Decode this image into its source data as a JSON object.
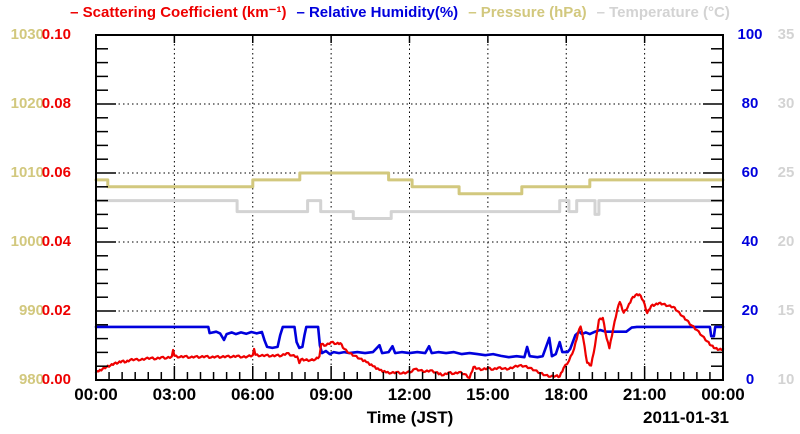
{
  "colors": {
    "scattering": "#ee0000",
    "humidity": "#0000dd",
    "pressure": "#d2c87e",
    "temperature": "#d3d3d3",
    "axis": "#000000"
  },
  "legend": {
    "items": [
      {
        "label": "– Scattering Coefficient (km⁻¹)",
        "color": "#ee0000"
      },
      {
        "label": "– Relative Humidity(%)",
        "color": "#0000dd"
      },
      {
        "label": "– Pressure (hPa)",
        "color": "#d2c87e"
      },
      {
        "label": "– Temperature (°C)",
        "color": "#d3d3d3"
      }
    ]
  },
  "axes": {
    "pressure": {
      "name": "Pressure (hPa)",
      "side": "left-outer",
      "color": "#d2c87e",
      "min": 980,
      "max": 1030,
      "ticks": [
        "1030",
        "1020",
        "1010",
        "1000",
        "990",
        "980"
      ]
    },
    "scattering": {
      "name": "Scattering Coefficient (km⁻¹)",
      "side": "left-inner",
      "color": "#ee0000",
      "min": 0,
      "max": 0.1,
      "ticks": [
        "0.10",
        "0.08",
        "0.06",
        "0.04",
        "0.02",
        "0.00"
      ]
    },
    "humidity": {
      "name": "Relative Humidity (%)",
      "side": "right-inner",
      "color": "#0000dd",
      "min": 0,
      "max": 100,
      "ticks": [
        "100",
        "80",
        "60",
        "40",
        "20",
        "0"
      ]
    },
    "temperature": {
      "name": "Temperature (°C)",
      "side": "right-outer",
      "color": "#d3d3d3",
      "min": 10,
      "max": 35,
      "ticks": [
        "35",
        "30",
        "25",
        "20",
        "15",
        "10"
      ]
    },
    "time": {
      "label": "Time (JST)",
      "date": "2011-01-31",
      "min": 0,
      "max": 24,
      "ticks": [
        "00:00",
        "03:00",
        "06:00",
        "09:00",
        "12:00",
        "15:00",
        "18:00",
        "21:00",
        "00:00"
      ],
      "major_step_hours": 3,
      "minor_step_hours": 0.5
    }
  },
  "chart_data": {
    "type": "line",
    "xlabel": "Time (JST)",
    "date": "2011-01-31",
    "x_range_hours": [
      0,
      24
    ],
    "grid": "dotted-at-major-ticks",
    "legend_position": "top-center",
    "series": [
      {
        "name": "Temperature (°C)",
        "axis": "temperature",
        "color": "#d3d3d3",
        "style": "step",
        "width": 3,
        "noisy": false,
        "points": [
          [
            0,
            23.0
          ],
          [
            5.4,
            22.2
          ],
          [
            8.1,
            23.0
          ],
          [
            8.6,
            22.2
          ],
          [
            9.85,
            21.7
          ],
          [
            11.3,
            22.2
          ],
          [
            17.75,
            23.0
          ],
          [
            18.1,
            22.2
          ],
          [
            18.4,
            23.0
          ],
          [
            19.1,
            22.0
          ],
          [
            19.25,
            23.0
          ],
          [
            24,
            23.0
          ]
        ]
      },
      {
        "name": "Pressure (hPa)",
        "axis": "pressure",
        "color": "#d2c87e",
        "style": "step",
        "width": 3,
        "noisy": false,
        "points": [
          [
            0,
            1009
          ],
          [
            0.45,
            1008
          ],
          [
            6.0,
            1009
          ],
          [
            7.8,
            1010
          ],
          [
            11.2,
            1009
          ],
          [
            12.1,
            1008
          ],
          [
            13.9,
            1007
          ],
          [
            16.3,
            1008
          ],
          [
            18.9,
            1009
          ],
          [
            24,
            1009
          ]
        ]
      },
      {
        "name": "Relative Humidity (%)",
        "axis": "humidity",
        "color": "#0000dd",
        "style": "linear",
        "width": 2.6,
        "noisy": false,
        "points": [
          [
            0,
            15.4
          ],
          [
            4.3,
            15.4
          ],
          [
            4.35,
            13.6
          ],
          [
            4.6,
            14.0
          ],
          [
            4.75,
            13.5
          ],
          [
            4.9,
            11.6
          ],
          [
            5.0,
            13.3
          ],
          [
            5.2,
            13.8
          ],
          [
            5.35,
            13.3
          ],
          [
            5.55,
            13.8
          ],
          [
            5.75,
            13.4
          ],
          [
            5.95,
            13.9
          ],
          [
            6.15,
            13.5
          ],
          [
            6.35,
            13.9
          ],
          [
            6.45,
            11.5
          ],
          [
            6.55,
            9.6
          ],
          [
            6.75,
            9.3
          ],
          [
            6.95,
            9.6
          ],
          [
            7.05,
            13.0
          ],
          [
            7.15,
            15.4
          ],
          [
            7.6,
            15.4
          ],
          [
            7.68,
            11.0
          ],
          [
            7.78,
            9.3
          ],
          [
            7.9,
            9.6
          ],
          [
            7.98,
            13.0
          ],
          [
            8.05,
            15.4
          ],
          [
            8.5,
            15.4
          ],
          [
            8.57,
            10.0
          ],
          [
            8.65,
            7.8
          ],
          [
            8.8,
            8.4
          ],
          [
            8.95,
            7.5
          ],
          [
            9.1,
            8.1
          ],
          [
            9.3,
            7.8
          ],
          [
            9.5,
            8.1
          ],
          [
            9.7,
            7.8
          ],
          [
            10.0,
            8.1
          ],
          [
            10.3,
            7.8
          ],
          [
            10.6,
            8.1
          ],
          [
            10.85,
            10.1
          ],
          [
            10.95,
            7.8
          ],
          [
            11.2,
            8.1
          ],
          [
            11.35,
            9.8
          ],
          [
            11.45,
            7.8
          ],
          [
            11.7,
            8.1
          ],
          [
            12.0,
            7.8
          ],
          [
            12.3,
            8.1
          ],
          [
            12.6,
            7.8
          ],
          [
            12.75,
            9.8
          ],
          [
            12.85,
            7.8
          ],
          [
            13.1,
            8.1
          ],
          [
            13.4,
            7.8
          ],
          [
            13.7,
            8.1
          ],
          [
            14.0,
            7.5
          ],
          [
            14.3,
            7.8
          ],
          [
            14.6,
            7.5
          ],
          [
            14.9,
            7.2
          ],
          [
            15.2,
            7.5
          ],
          [
            15.5,
            7.0
          ],
          [
            15.8,
            6.6
          ],
          [
            16.1,
            6.9
          ],
          [
            16.4,
            6.6
          ],
          [
            16.5,
            9.6
          ],
          [
            16.6,
            6.9
          ],
          [
            16.9,
            6.6
          ],
          [
            17.1,
            6.9
          ],
          [
            17.35,
            12.2
          ],
          [
            17.45,
            6.9
          ],
          [
            17.6,
            7.5
          ],
          [
            17.75,
            11.0
          ],
          [
            17.85,
            8.1
          ],
          [
            18.05,
            8.1
          ],
          [
            18.15,
            9.0
          ],
          [
            18.35,
            13.0
          ],
          [
            18.5,
            14.0
          ],
          [
            18.6,
            13.3
          ],
          [
            18.75,
            13.8
          ],
          [
            18.9,
            13.3
          ],
          [
            19.1,
            14.0
          ],
          [
            19.3,
            14.5
          ],
          [
            19.5,
            14.0
          ],
          [
            19.7,
            14.0
          ],
          [
            20.0,
            14.0
          ],
          [
            20.3,
            14.0
          ],
          [
            20.5,
            15.2
          ],
          [
            20.7,
            15.4
          ],
          [
            23.5,
            15.4
          ],
          [
            23.55,
            12.7
          ],
          [
            23.65,
            12.7
          ],
          [
            23.7,
            15.4
          ],
          [
            24,
            15.4
          ]
        ]
      },
      {
        "name": "Scattering Coefficient (km⁻¹)",
        "axis": "scattering",
        "color": "#ee0000",
        "style": "linear",
        "width": 2.2,
        "noisy": true,
        "points": [
          [
            0,
            0.0022
          ],
          [
            0.1,
            0.0025
          ],
          [
            0.25,
            0.0032
          ],
          [
            0.4,
            0.0038
          ],
          [
            0.55,
            0.0042
          ],
          [
            0.7,
            0.0048
          ],
          [
            0.85,
            0.005
          ],
          [
            1.0,
            0.0055
          ],
          [
            1.15,
            0.0052
          ],
          [
            1.3,
            0.0058
          ],
          [
            1.5,
            0.006
          ],
          [
            1.7,
            0.0058
          ],
          [
            1.9,
            0.0062
          ],
          [
            2.1,
            0.0064
          ],
          [
            2.3,
            0.0061
          ],
          [
            2.5,
            0.0066
          ],
          [
            2.7,
            0.0063
          ],
          [
            2.9,
            0.0068
          ],
          [
            2.95,
            0.0087
          ],
          [
            3.0,
            0.007
          ],
          [
            3.2,
            0.0066
          ],
          [
            3.4,
            0.0069
          ],
          [
            3.6,
            0.0065
          ],
          [
            3.8,
            0.0068
          ],
          [
            4.0,
            0.0066
          ],
          [
            4.2,
            0.0069
          ],
          [
            4.4,
            0.0065
          ],
          [
            4.6,
            0.0068
          ],
          [
            4.8,
            0.0066
          ],
          [
            5.0,
            0.0069
          ],
          [
            5.2,
            0.0067
          ],
          [
            5.4,
            0.007
          ],
          [
            5.6,
            0.0066
          ],
          [
            5.8,
            0.0068
          ],
          [
            6.0,
            0.0072
          ],
          [
            6.05,
            0.009
          ],
          [
            6.1,
            0.0073
          ],
          [
            6.3,
            0.007
          ],
          [
            6.5,
            0.0072
          ],
          [
            6.7,
            0.0069
          ],
          [
            6.9,
            0.0072
          ],
          [
            7.1,
            0.007
          ],
          [
            7.3,
            0.0078
          ],
          [
            7.5,
            0.0071
          ],
          [
            7.7,
            0.0068
          ],
          [
            7.78,
            0.0049
          ],
          [
            7.85,
            0.006
          ],
          [
            8.0,
            0.0058
          ],
          [
            8.2,
            0.0057
          ],
          [
            8.4,
            0.006
          ],
          [
            8.55,
            0.0068
          ],
          [
            8.62,
            0.0104
          ],
          [
            8.8,
            0.01
          ],
          [
            9.0,
            0.011
          ],
          [
            9.2,
            0.0105
          ],
          [
            9.35,
            0.0107
          ],
          [
            9.5,
            0.009
          ],
          [
            9.7,
            0.0078
          ],
          [
            9.9,
            0.007
          ],
          [
            10.1,
            0.0062
          ],
          [
            10.35,
            0.0052
          ],
          [
            10.6,
            0.004
          ],
          [
            10.85,
            0.0029
          ],
          [
            11.1,
            0.0022
          ],
          [
            11.3,
            0.002
          ],
          [
            11.5,
            0.0023
          ],
          [
            11.7,
            0.0019
          ],
          [
            11.9,
            0.0022
          ],
          [
            12.1,
            0.0025
          ],
          [
            12.2,
            0.0032
          ],
          [
            12.4,
            0.0028
          ],
          [
            12.6,
            0.0024
          ],
          [
            12.8,
            0.0028
          ],
          [
            13.0,
            0.0022
          ],
          [
            13.3,
            0.0014
          ],
          [
            13.5,
            0.0022
          ],
          [
            13.7,
            0.0018
          ],
          [
            13.9,
            0.0023
          ],
          [
            14.1,
            0.0017
          ],
          [
            14.3,
            0.0006
          ],
          [
            14.45,
            0.0038
          ],
          [
            14.6,
            0.0033
          ],
          [
            14.8,
            0.003
          ],
          [
            15.0,
            0.0035
          ],
          [
            15.2,
            0.003
          ],
          [
            15.4,
            0.0036
          ],
          [
            15.6,
            0.0033
          ],
          [
            15.8,
            0.0032
          ],
          [
            16.0,
            0.0038
          ],
          [
            16.2,
            0.0042
          ],
          [
            16.4,
            0.004
          ],
          [
            16.6,
            0.0035
          ],
          [
            16.8,
            0.0028
          ],
          [
            17.0,
            0.002
          ],
          [
            17.2,
            0.0014
          ],
          [
            17.4,
            0.001
          ],
          [
            17.6,
            0.0012
          ],
          [
            17.75,
            0.001
          ],
          [
            17.9,
            0.0035
          ],
          [
            18.1,
            0.0055
          ],
          [
            18.3,
            0.009
          ],
          [
            18.45,
            0.0136
          ],
          [
            18.55,
            0.0155
          ],
          [
            18.65,
            0.012
          ],
          [
            18.8,
            0.005
          ],
          [
            18.95,
            0.0042
          ],
          [
            19.1,
            0.01
          ],
          [
            19.25,
            0.0174
          ],
          [
            19.4,
            0.018
          ],
          [
            19.55,
            0.012
          ],
          [
            19.65,
            0.0092
          ],
          [
            19.8,
            0.015
          ],
          [
            19.95,
            0.0203
          ],
          [
            20.05,
            0.0226
          ],
          [
            20.2,
            0.0195
          ],
          [
            20.35,
            0.021
          ],
          [
            20.5,
            0.0235
          ],
          [
            20.65,
            0.0246
          ],
          [
            20.8,
            0.0248
          ],
          [
            20.95,
            0.023
          ],
          [
            21.1,
            0.0194
          ],
          [
            21.25,
            0.0215
          ],
          [
            21.4,
            0.0218
          ],
          [
            21.55,
            0.0223
          ],
          [
            21.7,
            0.022
          ],
          [
            21.9,
            0.0215
          ],
          [
            22.1,
            0.0212
          ],
          [
            22.25,
            0.02
          ],
          [
            22.45,
            0.0185
          ],
          [
            22.6,
            0.0174
          ],
          [
            22.8,
            0.0158
          ],
          [
            23.0,
            0.0145
          ],
          [
            23.2,
            0.0128
          ],
          [
            23.4,
            0.0112
          ],
          [
            23.55,
            0.01
          ],
          [
            23.7,
            0.0092
          ],
          [
            23.85,
            0.0088
          ],
          [
            24,
            0.009
          ]
        ]
      }
    ]
  }
}
